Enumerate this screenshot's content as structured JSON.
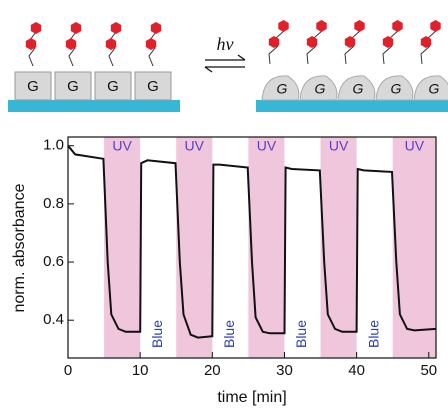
{
  "schematic": {
    "left_labels": [
      "G",
      "G",
      "G",
      "G"
    ],
    "arrow_label": "hν",
    "right_labels": [
      "G",
      "G",
      "G",
      "G",
      "G"
    ]
  },
  "chart_data": {
    "type": "line",
    "xlabel": "time [min]",
    "ylabel": "norm. absorbance",
    "color": "#111111",
    "x": [
      0,
      1,
      4.9,
      5.5,
      6,
      7,
      8,
      10,
      10.15,
      11,
      14.9,
      15.5,
      16,
      17,
      18,
      20,
      20.15,
      21,
      24.9,
      25.5,
      26,
      27,
      28,
      30,
      30.15,
      31,
      34.9,
      35.5,
      36,
      37,
      38,
      40,
      40.15,
      41,
      44.9,
      45.5,
      46,
      47,
      48,
      51
    ],
    "values": [
      1.0,
      0.97,
      0.955,
      0.6,
      0.42,
      0.37,
      0.36,
      0.36,
      0.94,
      0.95,
      0.94,
      0.6,
      0.42,
      0.35,
      0.34,
      0.345,
      0.935,
      0.935,
      0.925,
      0.6,
      0.41,
      0.36,
      0.355,
      0.355,
      0.925,
      0.92,
      0.915,
      0.6,
      0.42,
      0.37,
      0.36,
      0.36,
      0.92,
      0.915,
      0.91,
      0.6,
      0.42,
      0.37,
      0.365,
      0.37
    ],
    "regions": [
      {
        "start": 5,
        "end": 10,
        "label": "UV"
      },
      {
        "start": 15,
        "end": 20,
        "label": "UV"
      },
      {
        "start": 25,
        "end": 30,
        "label": "UV"
      },
      {
        "start": 35,
        "end": 40,
        "label": "UV"
      },
      {
        "start": 45,
        "end": 51,
        "label": "UV"
      }
    ],
    "region_color": "#f0c6dc",
    "annotations": [
      {
        "x": 12.5,
        "label": "Blue"
      },
      {
        "x": 22.5,
        "label": "Blue"
      },
      {
        "x": 32.5,
        "label": "Blue"
      },
      {
        "x": 42.5,
        "label": "Blue"
      }
    ],
    "xlim": [
      0,
      51
    ],
    "ylim": [
      0.27,
      1.03
    ],
    "xticks": [
      0,
      10,
      20,
      30,
      40,
      50
    ],
    "yticks": [
      0.4,
      0.6,
      0.8,
      {
        "value": 1,
        "label": "1.0"
      }
    ]
  }
}
